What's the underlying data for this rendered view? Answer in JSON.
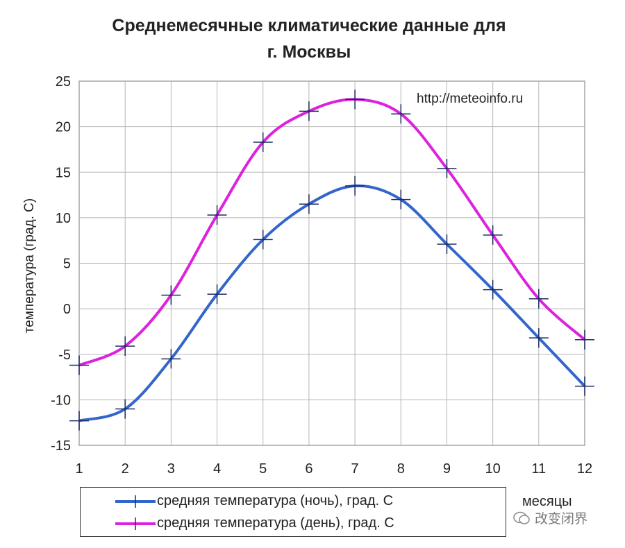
{
  "chart_data": {
    "type": "line",
    "title": "Среднемесячные климатические данные для",
    "title_line2": "г. Москвы",
    "xlabel": "месяцы",
    "ylabel": "температура (град. С)",
    "source_note": "http://meteoinfo.ru",
    "categories": [
      "1",
      "2",
      "3",
      "4",
      "5",
      "6",
      "7",
      "8",
      "9",
      "10",
      "11",
      "12"
    ],
    "x": [
      1,
      2,
      3,
      4,
      5,
      6,
      7,
      8,
      9,
      10,
      11,
      12
    ],
    "xlim": [
      1,
      12
    ],
    "ylim": [
      -15,
      25
    ],
    "yticks": [
      -15,
      -10,
      -5,
      0,
      5,
      10,
      15,
      20,
      25
    ],
    "grid": true,
    "legend_position": "bottom",
    "series": [
      {
        "name": "средняя температура (ночь), град. С",
        "color": "#3366cc",
        "values": [
          -12.3,
          -11.0,
          -5.5,
          1.6,
          7.6,
          11.5,
          13.5,
          12.0,
          7.1,
          2.1,
          -3.2,
          -8.5
        ]
      },
      {
        "name": "средняя температура (день), град. С",
        "color": "#dd22dd",
        "values": [
          -6.2,
          -4.1,
          1.5,
          10.3,
          18.3,
          21.7,
          23.0,
          21.4,
          15.4,
          8.1,
          1.1,
          -3.4
        ]
      }
    ]
  },
  "watermark": "改变闭界"
}
